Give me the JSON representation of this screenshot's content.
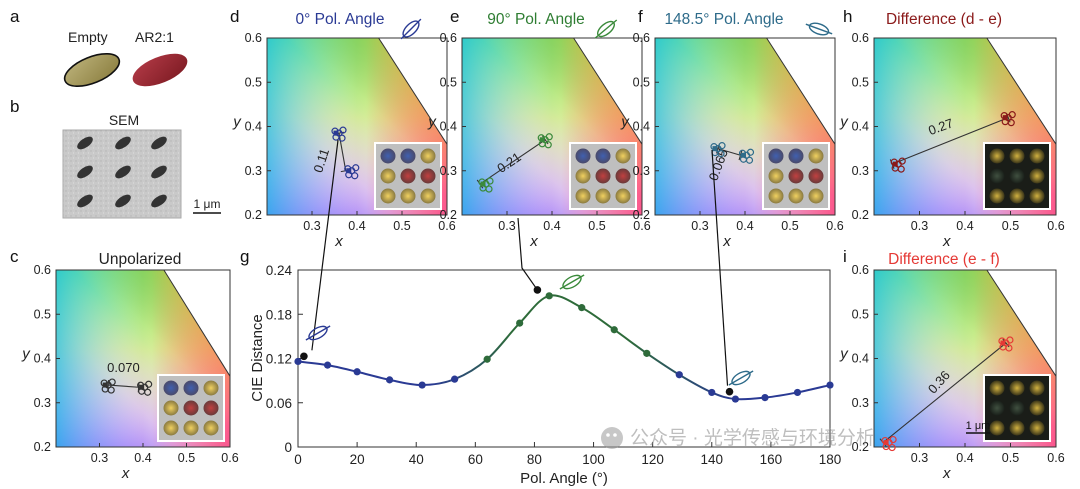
{
  "panel_letters": [
    "a",
    "b",
    "c",
    "d",
    "e",
    "f",
    "g",
    "h",
    "i"
  ],
  "panel_a": {
    "label_empty": "Empty",
    "label_ar": "AR2:1"
  },
  "panel_b": {
    "label_sem": "SEM",
    "scale_bar": "1 μm"
  },
  "panels_cie": [
    {
      "id": "c",
      "title": "Unpolarized",
      "title_color": "#222222",
      "distance_label": "0.070"
    },
    {
      "id": "d",
      "title": "0° Pol. Angle",
      "title_color": "#2a3a94",
      "distance_label": "0.11"
    },
    {
      "id": "e",
      "title": "90° Pol. Angle",
      "title_color": "#2e7d32",
      "distance_label": "0.21"
    },
    {
      "id": "f",
      "title": "148.5° Pol. Angle",
      "title_color": "#2e6b8a",
      "distance_label": "0.065"
    },
    {
      "id": "h",
      "title": "Difference (d - e)",
      "title_color": "#8b1a1a",
      "distance_label": "0.27"
    },
    {
      "id": "i",
      "title": "Difference (e - f)",
      "title_color": "#e53935",
      "distance_label": "0.36",
      "scale_bar": "1 μm"
    }
  ],
  "cie_axes": {
    "xlabel": "x",
    "ylabel": "y",
    "xticks": [
      "0.3",
      "0.4",
      "0.5",
      "0.6"
    ],
    "yticks": [
      "0.6",
      "0.5",
      "0.4",
      "0.3",
      "0.2"
    ]
  },
  "chart_data": {
    "type": "line",
    "xlabel": "Pol. Angle (°)",
    "ylabel": "CIE Distance",
    "xlim": [
      0,
      180
    ],
    "ylim": [
      0,
      0.24
    ],
    "xticks": [
      0,
      20,
      40,
      60,
      80,
      100,
      120,
      140,
      160,
      180
    ],
    "yticks": [
      0,
      0.06,
      0.12,
      0.18,
      0.24
    ],
    "series": [
      {
        "x": [
          0,
          10,
          20,
          31,
          42,
          53,
          64,
          75,
          85,
          96,
          107,
          118,
          129,
          140,
          148,
          158,
          169,
          180
        ],
        "values": [
          0.116,
          0.111,
          0.102,
          0.091,
          0.084,
          0.092,
          0.119,
          0.168,
          0.205,
          0.189,
          0.159,
          0.127,
          0.098,
          0.074,
          0.065,
          0.067,
          0.074,
          0.084
        ]
      }
    ],
    "callouts": [
      {
        "x": 2,
        "y": 0.123
      },
      {
        "x": 81,
        "y": 0.213
      },
      {
        "x": 146,
        "y": 0.075
      }
    ],
    "colors": {
      "blue": "#2a3a94",
      "green": "#2e6b3a"
    }
  },
  "watermark": "公众号 · 光学传感与环境分析"
}
